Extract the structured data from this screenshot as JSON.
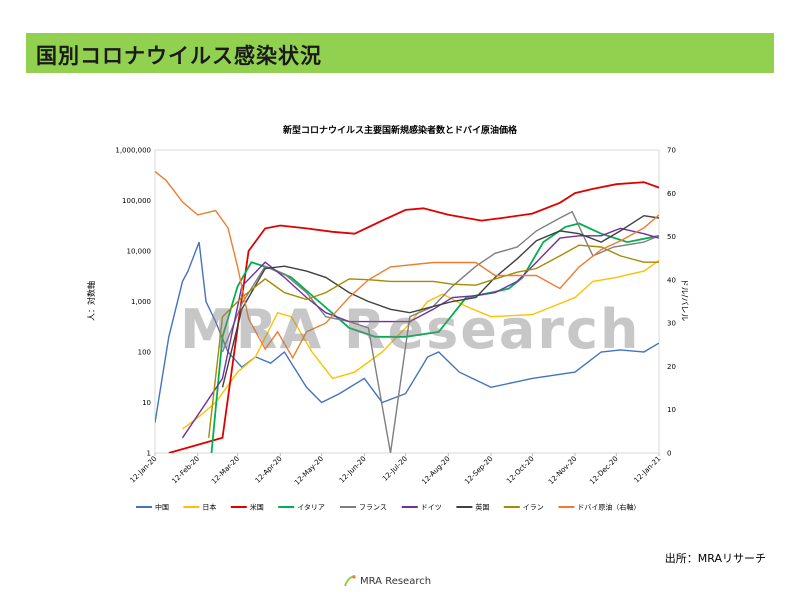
{
  "page": {
    "title": "国別コロナウイルス感染状況",
    "source": "出所：MRAリサーチ",
    "watermark": "MRA Research",
    "logo_text": "MRA Research"
  },
  "colors": {
    "banner": "#92d050",
    "中国": "#4472c4",
    "日本": "#ffc000",
    "米国": "#e00000",
    "イタリア": "#00b050",
    "フランス": "#7f7f7f",
    "ドイツ": "#7030a0",
    "英国": "#404040",
    "イラン": "#a68a00",
    "ドバイ原油（右軸）": "#ed7d31"
  },
  "chart_data": {
    "type": "line",
    "title": "新型コロナウイルス主要国新規感染者数とドバイ原油価格",
    "ylabel": "人：対数軸",
    "ylabel_right": "ドル/バレル",
    "y_scale": "log",
    "ylim": [
      1,
      1000000
    ],
    "y_ticks": [
      "1",
      "10",
      "100",
      "1,000",
      "10,000",
      "100,000",
      "1,000,000"
    ],
    "y2lim": [
      0,
      70
    ],
    "y2_ticks": [
      "0",
      "10",
      "20",
      "30",
      "40",
      "50",
      "60",
      "70"
    ],
    "x_range": [
      "2020-01-12",
      "2021-01-12"
    ],
    "x_ticks": [
      "12-Jan-20",
      "12-Feb-20",
      "12-Mar-20",
      "12-Apr-20",
      "12-May-20",
      "12-Jun-20",
      "12-Jul-20",
      "12-Aug-20",
      "12-Sep-20",
      "12-Oct-20",
      "12-Nov-20",
      "12-Dec-20",
      "12-Jan-21"
    ],
    "legend_position": "bottom",
    "series": [
      {
        "name": "中国",
        "axis": "left",
        "x": [
          "2020-01-12",
          "2020-01-22",
          "2020-02-01",
          "2020-02-05",
          "2020-02-13",
          "2020-02-18",
          "2020-02-25",
          "2020-03-05",
          "2020-03-15",
          "2020-03-25",
          "2020-04-05",
          "2020-04-15",
          "2020-05-01",
          "2020-05-12",
          "2020-05-25",
          "2020-06-12",
          "2020-06-25",
          "2020-07-12",
          "2020-07-28",
          "2020-08-05",
          "2020-08-20",
          "2020-09-12",
          "2020-10-12",
          "2020-11-12",
          "2020-12-01",
          "2020-12-15",
          "2021-01-01",
          "2021-01-12"
        ],
        "values": [
          4,
          200,
          2500,
          4000,
          15000,
          1000,
          400,
          100,
          50,
          80,
          60,
          100,
          20,
          10,
          15,
          30,
          10,
          15,
          80,
          100,
          40,
          20,
          30,
          40,
          100,
          110,
          100,
          150
        ]
      },
      {
        "name": "日本",
        "axis": "left",
        "x": [
          "2020-02-01",
          "2020-02-12",
          "2020-02-25",
          "2020-03-12",
          "2020-03-25",
          "2020-04-10",
          "2020-04-20",
          "2020-05-05",
          "2020-05-20",
          "2020-06-05",
          "2020-06-25",
          "2020-07-12",
          "2020-07-28",
          "2020-08-08",
          "2020-08-25",
          "2020-09-12",
          "2020-10-12",
          "2020-11-12",
          "2020-11-25",
          "2020-12-12",
          "2021-01-01",
          "2021-01-12"
        ],
        "values": [
          3,
          5,
          10,
          40,
          80,
          600,
          500,
          100,
          30,
          40,
          100,
          300,
          1000,
          1400,
          800,
          500,
          550,
          1200,
          2500,
          3000,
          4000,
          6500
        ]
      },
      {
        "name": "米国",
        "axis": "left",
        "x": [
          "2020-01-22",
          "2020-03-01",
          "2020-03-12",
          "2020-03-20",
          "2020-04-01",
          "2020-04-12",
          "2020-05-01",
          "2020-05-20",
          "2020-06-05",
          "2020-06-25",
          "2020-07-12",
          "2020-07-25",
          "2020-08-12",
          "2020-09-05",
          "2020-09-20",
          "2020-10-12",
          "2020-11-01",
          "2020-11-12",
          "2020-11-25",
          "2020-12-12",
          "2021-01-01",
          "2021-01-12"
        ],
        "values": [
          1,
          2,
          300,
          10000,
          28000,
          32000,
          28000,
          24000,
          22000,
          40000,
          65000,
          70000,
          52000,
          40000,
          45000,
          55000,
          90000,
          140000,
          170000,
          210000,
          230000,
          180000
        ]
      },
      {
        "name": "イタリア",
        "axis": "left",
        "x": [
          "2020-02-22",
          "2020-03-01",
          "2020-03-12",
          "2020-03-22",
          "2020-04-05",
          "2020-04-20",
          "2020-05-10",
          "2020-06-01",
          "2020-06-20",
          "2020-07-12",
          "2020-08-05",
          "2020-08-25",
          "2020-09-12",
          "2020-09-25",
          "2020-10-05",
          "2020-10-20",
          "2020-11-05",
          "2020-11-15",
          "2020-12-01",
          "2020-12-20",
          "2021-01-12"
        ],
        "values": [
          1,
          200,
          2000,
          6000,
          4500,
          3000,
          1000,
          300,
          200,
          200,
          250,
          1200,
          1500,
          1800,
          3000,
          15000,
          30000,
          35000,
          22000,
          15000,
          20000
        ]
      },
      {
        "name": "フランス",
        "axis": "left",
        "x": [
          "2020-03-01",
          "2020-03-15",
          "2020-04-01",
          "2020-04-15",
          "2020-05-01",
          "2020-05-15",
          "2020-06-01",
          "2020-06-15",
          "2020-07-01",
          "2020-07-15",
          "2020-08-01",
          "2020-08-15",
          "2020-09-01",
          "2020-09-15",
          "2020-10-01",
          "2020-10-15",
          "2020-11-01",
          "2020-11-10",
          "2020-11-25",
          "2020-12-10",
          "2021-01-01",
          "2021-01-12"
        ],
        "values": [
          100,
          900,
          5000,
          3500,
          1500,
          500,
          400,
          300,
          1,
          500,
          800,
          2000,
          5000,
          9000,
          12000,
          25000,
          45000,
          60000,
          8000,
          12000,
          15000,
          20000
        ]
      },
      {
        "name": "ドイツ",
        "axis": "left",
        "x": [
          "2020-02-01",
          "2020-03-01",
          "2020-03-15",
          "2020-04-01",
          "2020-04-15",
          "2020-05-01",
          "2020-05-15",
          "2020-06-01",
          "2020-06-15",
          "2020-07-01",
          "2020-07-15",
          "2020-08-01",
          "2020-08-15",
          "2020-09-01",
          "2020-09-15",
          "2020-10-01",
          "2020-10-15",
          "2020-11-01",
          "2020-11-15",
          "2020-12-01",
          "2020-12-15",
          "2021-01-01",
          "2021-01-12"
        ],
        "values": [
          2,
          30,
          2000,
          6000,
          3000,
          1200,
          600,
          400,
          400,
          400,
          400,
          700,
          1200,
          1300,
          1500,
          2500,
          6000,
          18000,
          20000,
          20000,
          28000,
          22000,
          18000
        ]
      },
      {
        "name": "英国",
        "axis": "left",
        "x": [
          "2020-03-01",
          "2020-03-15",
          "2020-04-01",
          "2020-04-15",
          "2020-05-01",
          "2020-05-15",
          "2020-06-01",
          "2020-06-15",
          "2020-07-01",
          "2020-07-15",
          "2020-08-01",
          "2020-08-15",
          "2020-09-01",
          "2020-09-15",
          "2020-10-01",
          "2020-10-15",
          "2020-11-01",
          "2020-11-15",
          "2020-12-01",
          "2020-12-15",
          "2021-01-01",
          "2021-01-12"
        ],
        "values": [
          20,
          700,
          4500,
          5000,
          4000,
          3000,
          1500,
          1000,
          700,
          600,
          800,
          1000,
          1200,
          3000,
          7000,
          16000,
          25000,
          22000,
          15000,
          25000,
          50000,
          45000
        ]
      },
      {
        "name": "イラン",
        "axis": "left",
        "x": [
          "2020-02-20",
          "2020-03-01",
          "2020-03-15",
          "2020-04-01",
          "2020-04-15",
          "2020-05-01",
          "2020-05-15",
          "2020-06-01",
          "2020-06-15",
          "2020-07-01",
          "2020-07-15",
          "2020-08-01",
          "2020-08-15",
          "2020-09-01",
          "2020-09-15",
          "2020-10-01",
          "2020-10-15",
          "2020-11-01",
          "2020-11-15",
          "2020-12-01",
          "2020-12-15",
          "2021-01-01",
          "2021-01-12"
        ],
        "values": [
          2,
          500,
          1200,
          2800,
          1500,
          1100,
          1500,
          2800,
          2700,
          2500,
          2500,
          2500,
          2200,
          2100,
          2800,
          3800,
          4500,
          8000,
          13000,
          12000,
          8000,
          6000,
          6000
        ]
      },
      {
        "name": "ドバイ原油（右軸）",
        "axis": "right",
        "x": [
          "2020-01-12",
          "2020-01-20",
          "2020-02-01",
          "2020-02-12",
          "2020-02-25",
          "2020-03-05",
          "2020-03-12",
          "2020-03-20",
          "2020-04-01",
          "2020-04-10",
          "2020-04-21",
          "2020-05-01",
          "2020-05-15",
          "2020-06-01",
          "2020-06-15",
          "2020-07-01",
          "2020-08-01",
          "2020-09-01",
          "2020-09-15",
          "2020-10-01",
          "2020-10-15",
          "2020-11-01",
          "2020-11-15",
          "2020-12-01",
          "2020-12-15",
          "2021-01-01",
          "2021-01-12"
        ],
        "values": [
          65,
          63,
          58,
          55,
          56,
          52,
          43,
          31,
          24,
          28,
          22,
          28,
          30,
          36,
          40,
          43,
          44,
          44,
          41,
          41,
          41,
          38,
          43,
          47,
          49,
          52,
          55
        ]
      }
    ]
  }
}
